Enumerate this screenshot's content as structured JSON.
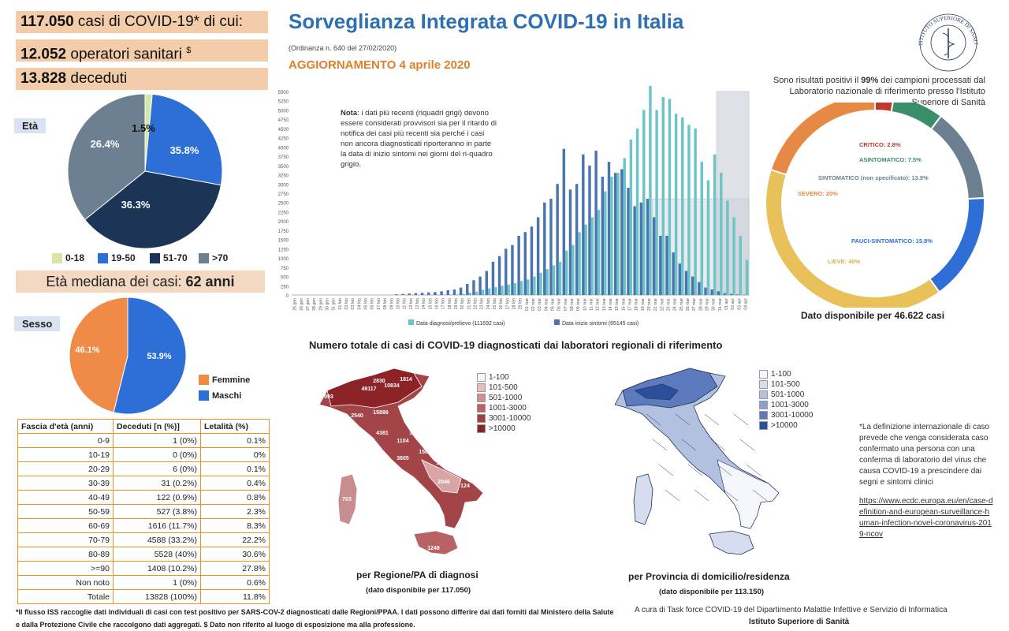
{
  "stats": {
    "cases_num": "117.050",
    "cases_text": " casi di COVID-19* di cui:",
    "hc_num": "12.052",
    "hc_text": " operatori sanitari ",
    "hc_sup": "$",
    "deaths_num": "13.828",
    "deaths_text": " deceduti"
  },
  "header": {
    "title": "Sorveglianza Integrata COVID-19 in Italia",
    "ordinanza": "(Ordinanza n. 640 del 27/02/2020)",
    "update": "AGGIORNAMENTO 4 aprile 2020",
    "seal_text": "ISTITUTO SUPERIORE DI SANITÀ"
  },
  "age_section": {
    "label": "Età",
    "legend": [
      "0-18",
      "19-50",
      "51-70",
      ">70"
    ],
    "median_label": "Età mediana dei casi: ",
    "median_value": "62 anni"
  },
  "sex_section": {
    "label": "Sesso",
    "legend": [
      "Femmine",
      "Maschi"
    ]
  },
  "table": {
    "headers": [
      "Fascia d'età (anni)",
      "Deceduti [n (%)]",
      "Letalità (%)"
    ],
    "rows": [
      [
        "0-9",
        "1 (0%)",
        "0.1%"
      ],
      [
        "10-19",
        "0 (0%)",
        "0%"
      ],
      [
        "20-29",
        "6 (0%)",
        "0.1%"
      ],
      [
        "30-39",
        "31 (0.2%)",
        "0.4%"
      ],
      [
        "40-49",
        "122 (0.9%)",
        "0.8%"
      ],
      [
        "50-59",
        "527 (3.8%)",
        "2.3%"
      ],
      [
        "60-69",
        "1616 (11.7%)",
        "8.3%"
      ],
      [
        "70-79",
        "4588 (33.2%)",
        "22.2%"
      ],
      [
        "80-89",
        "5528 (40%)",
        "30.6%"
      ],
      [
        ">=90",
        "1408 (10.2%)",
        "27.8%"
      ],
      [
        "Non noto",
        "1 (0%)",
        "0.6%"
      ],
      [
        "Totale",
        "13828 (100%)",
        "11.8%"
      ]
    ]
  },
  "note": {
    "bold": "Nota",
    "text": ": i dati più recenti (riquadri grigi) devono essere considerati provvisori sia per il ritardo di notifica dei casi più recenti sia perché i casi non ancora diagnosticati riporteranno in parte la data di inizio sintomi nei giorni del ri-quadro grigio."
  },
  "donut": {
    "title_a": "Sono risultati positivi il ",
    "title_b": "99%",
    "title_c": " dei campioni processati dal Laboratorio nazionale di riferimento presso l'Istituto Superiore di Sanità",
    "footer": "Dato disponibile per 46.622 casi"
  },
  "maps": {
    "section_title": "Numero totale di casi di COVID-19 diagnosticati dai laboratori regionali di riferimento",
    "left_label": "per Regione/PA di diagnosi",
    "left_sub": "(dato disponibile per 117.050)",
    "right_label": "per Provincia di domicilio/residenza",
    "right_sub": "(dato disponibile per 113.150)",
    "legend": [
      "1-100",
      "101-500",
      "501-1000",
      "1001-3000",
      "3001-10000",
      ">10000"
    ],
    "region_values": [
      "1581",
      "1814",
      "2830",
      "10834",
      "835",
      "49117",
      "9093",
      "15886",
      "2540",
      "4381",
      "3997",
      "1104",
      "1587",
      "3605",
      "175",
      "2216",
      "2046",
      "124",
      "703",
      "634",
      "1248"
    ]
  },
  "definition": {
    "text": "*La definizione internazionale di caso prevede che venga considerata caso confermato una persona con una conferma di laboratorio del virus che causa COVID-19 a prescindere dai segni e sintomi clinici",
    "link": "https://www.ecdc.europa.eu/en/case-definition-and-european-surveillance-human-infection-novel-coronavirus-2019-ncov"
  },
  "footer": {
    "footnote": "*Il flusso ISS raccoglie dati individuali di casi con test positivo per SARS-COV-2 diagnosticati dalle Regioni/PPAA. I dati possono differire dai dati forniti dal Ministero della Salute e dalla Protezione Civile che raccolgono dati aggregati. $ Dato non riferito al luogo di esposizione ma alla professione.",
    "credit": "A cura di  Task force  COVID-19 del Dipartimento Malattie Infettive e Servizio di Informatica",
    "credit2": "Istituto Superiore di Sanità"
  },
  "colors": {
    "title_blue": "#2f6fb3",
    "orange": "#e07f2a",
    "diagnosi": "#6cc3c8",
    "sintomi": "#4a74b0",
    "map_red": "#8c2427",
    "map_blue": "#2c4f99"
  },
  "chart_data": [
    {
      "type": "pie",
      "title": "",
      "labels": [
        "0-18",
        "19-50",
        "51-70",
        ">70"
      ],
      "values": [
        1.5,
        26.4,
        36.3,
        35.8
      ],
      "data_labels": [
        "1.5%",
        "26.4%",
        "36.3%",
        "35.8%"
      ],
      "colors": [
        "#d6e6a6",
        "#2d6fd6",
        "#1c3557",
        "#6c8091"
      ]
    },
    {
      "type": "pie",
      "title": "",
      "labels": [
        "Femmine",
        "Maschi"
      ],
      "values": [
        46.1,
        53.9
      ],
      "data_labels": [
        "46.1%",
        "53.9%"
      ],
      "colors": [
        "#f08b47",
        "#2d6fd6"
      ]
    },
    {
      "type": "bar",
      "title": "",
      "ylim": [
        0,
        5500
      ],
      "yticks": [
        0,
        250,
        500,
        750,
        1000,
        1250,
        1500,
        1750,
        2000,
        2250,
        2500,
        2750,
        3000,
        3250,
        3500,
        3750,
        4000,
        4250,
        4500,
        4750,
        5000,
        5250,
        5500
      ],
      "yticks_labeled": [
        0,
        250,
        500,
        750,
        1000,
        1250,
        1500,
        1750,
        2000,
        2250,
        2500,
        2750,
        3000,
        3250,
        3500,
        3750,
        4000,
        4250,
        4500,
        4750,
        5000,
        5250,
        5500
      ],
      "categories": [
        "25 gen",
        "26 gen",
        "27 gen",
        "28 gen",
        "29 gen",
        "30 gen",
        "31 gen",
        "01 feb",
        "02 feb",
        "03 feb",
        "04 feb",
        "05 feb",
        "06 feb",
        "07 feb",
        "08 feb",
        "09 feb",
        "10 feb",
        "11 feb",
        "12 feb",
        "13 feb",
        "14 feb",
        "15 feb",
        "16 feb",
        "17 feb",
        "18 feb",
        "19 feb",
        "20 feb",
        "21 feb",
        "22 feb",
        "23 feb",
        "24 feb",
        "25 feb",
        "26 feb",
        "27 feb",
        "28 feb",
        "29 feb",
        "01 mar",
        "02 mar",
        "03 mar",
        "04 mar",
        "05 mar",
        "06 mar",
        "07 mar",
        "08 mar",
        "09 mar",
        "10 mar",
        "11 mar",
        "12 mar",
        "13 mar",
        "14 mar",
        "15 mar",
        "16 mar",
        "17 mar",
        "18 mar",
        "19 mar",
        "20 mar",
        "21 mar",
        "22 mar",
        "23 mar",
        "24 mar",
        "25 mar",
        "26 mar",
        "27 mar",
        "28 mar",
        "29 mar",
        "30 mar",
        "31 mar",
        "01 apr",
        "02 apr",
        "03 apr",
        "04 apr"
      ],
      "series": [
        {
          "name": "Data diagnosi/prelievo (111692 casi)",
          "values": [
            0,
            0,
            0,
            0,
            0,
            0,
            2,
            0,
            0,
            0,
            0,
            0,
            0,
            0,
            0,
            0,
            0,
            0,
            0,
            0,
            0,
            0,
            0,
            0,
            0,
            5,
            30,
            60,
            90,
            140,
            180,
            210,
            250,
            280,
            320,
            380,
            420,
            500,
            600,
            700,
            800,
            900,
            1200,
            1350,
            1700,
            1900,
            2100,
            2300,
            2800,
            3200,
            3300,
            3700,
            4200,
            4500,
            5000,
            5650,
            5000,
            5350,
            5300,
            4900,
            4800,
            4600,
            4500,
            3600,
            3100,
            3800,
            3300,
            2550,
            2100,
            1600,
            950
          ]
        },
        {
          "name": "Data inizio sintomi (65145 casi)",
          "values": [
            0,
            0,
            0,
            0,
            0,
            0,
            0,
            0,
            0,
            0,
            0,
            0,
            0,
            0,
            0,
            0,
            20,
            30,
            40,
            50,
            60,
            70,
            80,
            100,
            130,
            150,
            200,
            300,
            400,
            500,
            650,
            900,
            1050,
            1250,
            1350,
            1600,
            1700,
            1850,
            2100,
            2500,
            2600,
            3000,
            3950,
            2850,
            3000,
            3800,
            3500,
            3900,
            3200,
            3600,
            3300,
            3400,
            2900,
            2400,
            2500,
            2600,
            2100,
            1600,
            1600,
            1150,
            850,
            650,
            500,
            350,
            200,
            150,
            100,
            50,
            30,
            15,
            5
          ]
        }
      ],
      "legend": [
        "Data diagnosi/prelievo (111692 casi)",
        "Data inizio sintomi (65145 casi)"
      ]
    },
    {
      "type": "pie",
      "title": "",
      "donut": true,
      "labels": [
        "CRITICO: 2.8%",
        "ASINTOMATICO: 7.5%",
        "SINTOMATICO (non specificato): 13.9%",
        "PAUCI-SINTOMATICO: 15.8%",
        "LIEVE: 40%",
        "SEVERO: 20%"
      ],
      "values": [
        2.8,
        7.5,
        13.9,
        15.8,
        40,
        20
      ],
      "colors": [
        "#c0392b",
        "#3a8f6a",
        "#6c8091",
        "#2d6fd6",
        "#e8c15a",
        "#e68945"
      ]
    }
  ]
}
